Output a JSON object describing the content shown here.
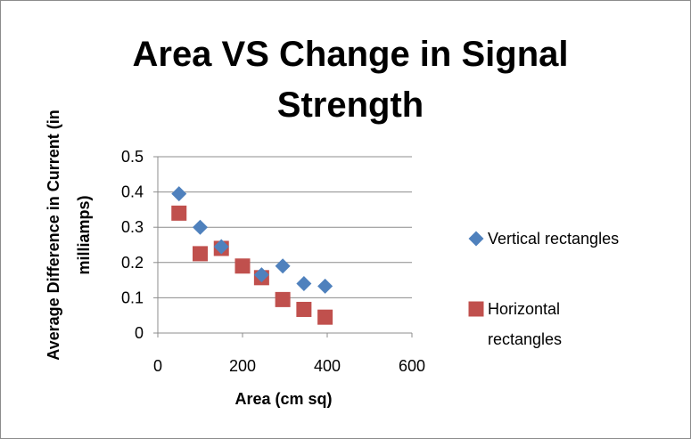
{
  "chart_data": {
    "type": "scatter",
    "title_lines": [
      "Area VS Change in Signal",
      "Strength"
    ],
    "xlabel": "Area (cm sq)",
    "ylabel_lines": [
      "Average Difference in Current (in",
      "milliamps)"
    ],
    "xlim": [
      0,
      600
    ],
    "ylim": [
      0,
      0.5
    ],
    "xticks": [
      "0",
      "200",
      "400",
      "600"
    ],
    "yticks": [
      "0",
      "0.1",
      "0.2",
      "0.3",
      "0.4",
      "0.5"
    ],
    "xtick_values": [
      0,
      200,
      400,
      600
    ],
    "ytick_values": [
      0,
      0.1,
      0.2,
      0.3,
      0.4,
      0.5
    ],
    "grid": "horizontal",
    "legend_position": "right",
    "series": [
      {
        "name": "Vertical rectangles",
        "marker": "diamond",
        "color": "#4f81bd",
        "legend_lines": [
          "Vertical rectangles"
        ],
        "points": [
          {
            "x": 50,
            "y": 0.395
          },
          {
            "x": 100,
            "y": 0.3
          },
          {
            "x": 150,
            "y": 0.245
          },
          {
            "x": 245,
            "y": 0.165
          },
          {
            "x": 295,
            "y": 0.19
          },
          {
            "x": 345,
            "y": 0.14
          },
          {
            "x": 395,
            "y": 0.133
          }
        ]
      },
      {
        "name": "Horizontal rectangles",
        "marker": "square",
        "color": "#c0504d",
        "legend_lines": [
          "Horizontal",
          "rectangles"
        ],
        "points": [
          {
            "x": 50,
            "y": 0.34
          },
          {
            "x": 100,
            "y": 0.225
          },
          {
            "x": 150,
            "y": 0.24
          },
          {
            "x": 200,
            "y": 0.19
          },
          {
            "x": 245,
            "y": 0.157
          },
          {
            "x": 295,
            "y": 0.095
          },
          {
            "x": 345,
            "y": 0.067
          },
          {
            "x": 395,
            "y": 0.045
          }
        ]
      }
    ]
  }
}
